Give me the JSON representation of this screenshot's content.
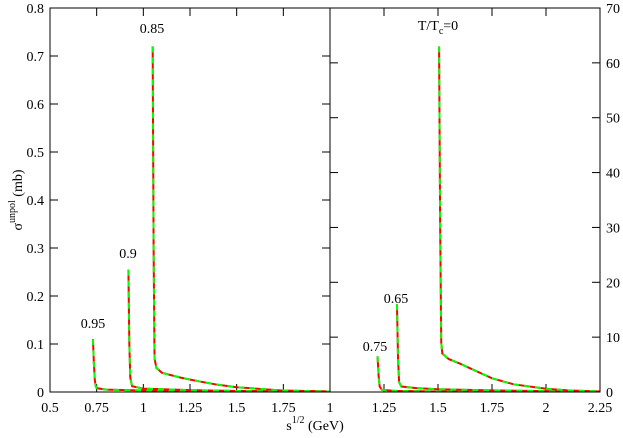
{
  "chart_data": [
    {
      "type": "line",
      "xlim": [
        0.5,
        2
      ],
      "xticks": [
        0.5,
        0.75,
        1,
        1.25,
        1.5,
        1.75
      ],
      "ylim": [
        0,
        0.8
      ],
      "yticks": [
        0,
        0.1,
        0.2,
        0.3,
        0.4,
        0.5,
        0.6,
        0.7,
        0.8
      ],
      "ylabel": {
        "main": "σ",
        "sup": "unpol",
        "after": " (mb)"
      },
      "xlabel": {
        "main": "s",
        "sup": "1/2",
        "after": " (GeV)"
      },
      "annotations": [
        {
          "text": "0.95"
        },
        {
          "text": "0.9"
        },
        {
          "text": "0.85"
        }
      ],
      "series": [
        {
          "color": "#ff0000",
          "dash_color": "#00ff00",
          "x": [
            0.73,
            0.735,
            0.74,
            0.745,
            0.75,
            0.8,
            1,
            1.5,
            2
          ],
          "values": [
            0.11,
            0.06,
            0.025,
            0.012,
            0.008,
            0.005,
            0.003,
            0.002,
            0.001
          ]
        },
        {
          "color": "#ff0000",
          "dash_color": "#00ff00",
          "x": [
            0.92,
            0.925,
            0.93,
            0.94,
            1,
            1.25,
            1.5,
            2
          ],
          "values": [
            0.255,
            0.1,
            0.03,
            0.012,
            0.007,
            0.004,
            0.002,
            0.001
          ]
        },
        {
          "color": "#ff0000",
          "dash_color": "#00ff00",
          "x": [
            1.05,
            1.055,
            1.06,
            1.07,
            1.1,
            1.2,
            1.3,
            1.4,
            1.5,
            1.75,
            2
          ],
          "values": [
            0.72,
            0.3,
            0.07,
            0.05,
            0.04,
            0.03,
            0.022,
            0.015,
            0.01,
            0.003,
            0.001
          ]
        }
      ]
    },
    {
      "type": "line",
      "xlim": [
        1,
        2.25
      ],
      "xticks": [
        1,
        1.25,
        1.5,
        1.75,
        2,
        2.25
      ],
      "ylim": [
        0,
        70
      ],
      "yticks": [
        0,
        10,
        20,
        30,
        40,
        50,
        60,
        70
      ],
      "annotations": [
        {
          "text": "0.75"
        },
        {
          "text": "0.65"
        },
        {
          "text": "T/T",
          "sub": "c",
          "after": "=0"
        }
      ],
      "series": [
        {
          "color": "#ff0000",
          "dash_color": "#00ff00",
          "x": [
            1.22,
            1.225,
            1.23,
            1.24,
            1.3,
            1.5,
            2,
            2.25
          ],
          "values": [
            6.5,
            3,
            1,
            0.4,
            0.2,
            0.1,
            0.05,
            0.02
          ]
        },
        {
          "color": "#ff0000",
          "dash_color": "#00ff00",
          "x": [
            1.31,
            1.315,
            1.32,
            1.33,
            1.4,
            1.5,
            1.75,
            2,
            2.25
          ],
          "values": [
            16,
            6,
            1.8,
            1,
            0.7,
            0.5,
            0.3,
            0.15,
            0.1
          ]
        },
        {
          "color": "#ff0000",
          "dash_color": "#00ff00",
          "x": [
            1.505,
            1.51,
            1.515,
            1.52,
            1.55,
            1.6,
            1.65,
            1.7,
            1.75,
            1.85,
            2,
            2.1,
            2.25
          ],
          "values": [
            63,
            30,
            9,
            7,
            6,
            5.2,
            4.3,
            3.4,
            2.5,
            1.4,
            0.6,
            0.3,
            0.1
          ]
        }
      ]
    }
  ]
}
